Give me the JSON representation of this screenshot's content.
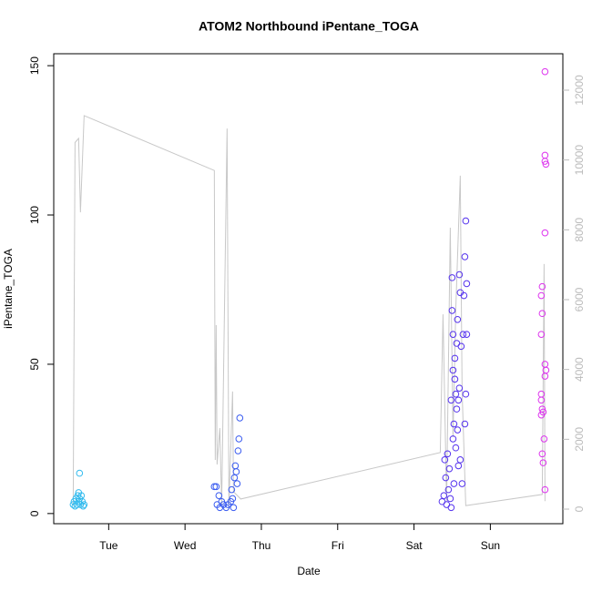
{
  "chart_data": {
    "type": "scatter",
    "title": "ATOM2 Northbound iPentane_TOGA",
    "xlabel": "Date",
    "ylabel": "iPentane_TOGA",
    "xlim": [
      0.28,
      6.95
    ],
    "xticks": [
      {
        "value": 1,
        "label": "Tue"
      },
      {
        "value": 2,
        "label": "Wed"
      },
      {
        "value": 3,
        "label": "Thu"
      },
      {
        "value": 4,
        "label": "Fri"
      },
      {
        "value": 5,
        "label": "Sat"
      },
      {
        "value": 6,
        "label": "Sun"
      }
    ],
    "ylim": [
      -3.4,
      154
    ],
    "yticks": [
      0,
      50,
      100,
      150
    ],
    "y2lim": [
      -417,
      13043
    ],
    "y2ticks": [
      0,
      2000,
      4000,
      6000,
      8000,
      10000,
      12000
    ],
    "series": [
      {
        "type": "line",
        "axis": "y2",
        "color": "#c8c8c8",
        "x": [
          0.535,
          0.559,
          0.606,
          0.63,
          0.678,
          2.384,
          2.396,
          2.408,
          2.42,
          2.456,
          2.48,
          2.551,
          2.575,
          2.623,
          2.635,
          2.73,
          5.344,
          5.38,
          5.427,
          5.475,
          5.511,
          5.547,
          5.606,
          5.63,
          5.678,
          6.68,
          6.704,
          6.716
        ],
        "values": [
          100,
          10500,
          10620,
          8500,
          11270,
          9700,
          1410,
          5270,
          1280,
          2320,
          100,
          10900,
          100,
          3370,
          500,
          290,
          1620,
          5580,
          230,
          8060,
          2060,
          5710,
          9550,
          3370,
          100,
          420,
          7020,
          230
        ]
      },
      {
        "color": "#33bbee",
        "x": [
          0.535,
          0.547,
          0.559,
          0.571,
          0.583,
          0.594,
          0.606,
          0.606,
          0.618,
          0.618,
          0.63,
          0.642,
          0.654,
          0.666,
          0.678
        ],
        "values": [
          3,
          4,
          2.5,
          5,
          3,
          6,
          7,
          4,
          13.5,
          5,
          3,
          6,
          4,
          2.5,
          3
        ]
      },
      {
        "color": "#3a5cf0",
        "x": [
          2.384,
          2.408,
          2.42,
          2.444,
          2.456,
          2.48,
          2.504,
          2.539,
          2.563,
          2.599,
          2.611,
          2.623,
          2.635,
          2.647,
          2.659,
          2.671,
          2.683,
          2.695,
          2.706,
          2.718
        ],
        "values": [
          9,
          9,
          3,
          6,
          2,
          4,
          3,
          2,
          3,
          4,
          8,
          5,
          2,
          12,
          16,
          14,
          10,
          21,
          25,
          32
        ]
      },
      {
        "color": "#5533ee",
        "x": [
          5.368,
          5.391,
          5.403,
          5.415,
          5.427,
          5.439,
          5.451,
          5.463,
          5.475,
          5.487,
          5.487,
          5.499,
          5.499,
          5.511,
          5.511,
          5.511,
          5.523,
          5.523,
          5.535,
          5.535,
          5.547,
          5.547,
          5.559,
          5.559,
          5.57,
          5.57,
          5.582,
          5.582,
          5.594,
          5.594,
          5.606,
          5.606,
          5.618,
          5.63,
          5.642,
          5.654,
          5.666,
          5.666,
          5.678,
          5.678,
          5.69,
          5.69
        ],
        "values": [
          4,
          6,
          18,
          12,
          3,
          20,
          8,
          15,
          5,
          38,
          2,
          79,
          68,
          60,
          48,
          25,
          30,
          10,
          52,
          45,
          40,
          22,
          35,
          57,
          65,
          28,
          38,
          16,
          80,
          42,
          74,
          18,
          56,
          10,
          60,
          73,
          86,
          30,
          98,
          40,
          77,
          60
        ]
      },
      {
        "color": "#dd33ee",
        "x": [
          6.716,
          6.716,
          6.716,
          6.728,
          6.716,
          6.68,
          6.668,
          6.68,
          6.668,
          6.716,
          6.728,
          6.716,
          6.668,
          6.668,
          6.68,
          6.692,
          6.668,
          6.704,
          6.68,
          6.692,
          6.716
        ],
        "values": [
          148,
          120,
          118,
          117,
          94,
          76,
          73,
          67,
          60,
          50,
          48,
          46,
          40,
          38,
          35,
          34,
          33,
          25,
          20,
          17,
          8
        ]
      }
    ]
  }
}
